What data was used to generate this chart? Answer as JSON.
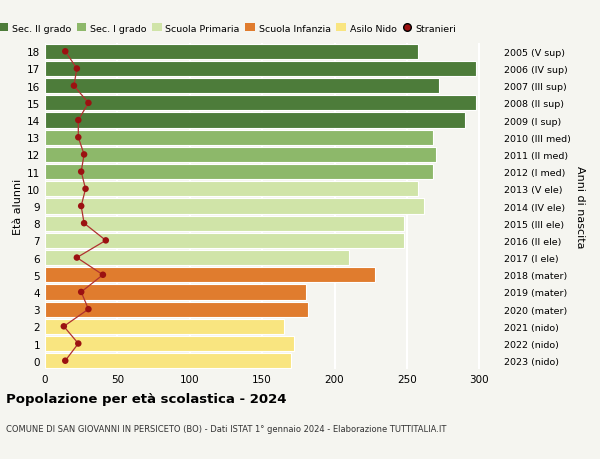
{
  "ages": [
    0,
    1,
    2,
    3,
    4,
    5,
    6,
    7,
    8,
    9,
    10,
    11,
    12,
    13,
    14,
    15,
    16,
    17,
    18
  ],
  "bar_values": [
    170,
    172,
    165,
    182,
    180,
    228,
    210,
    248,
    248,
    262,
    258,
    268,
    270,
    268,
    290,
    298,
    272,
    298,
    258
  ],
  "stranieri": [
    14,
    23,
    13,
    30,
    25,
    40,
    22,
    42,
    27,
    25,
    28,
    25,
    27,
    23,
    23,
    30,
    20,
    22,
    14
  ],
  "right_labels": [
    "2023 (nido)",
    "2022 (nido)",
    "2021 (nido)",
    "2020 (mater)",
    "2019 (mater)",
    "2018 (mater)",
    "2017 (I ele)",
    "2016 (II ele)",
    "2015 (III ele)",
    "2014 (IV ele)",
    "2013 (V ele)",
    "2012 (I med)",
    "2011 (II med)",
    "2010 (III med)",
    "2009 (I sup)",
    "2008 (II sup)",
    "2007 (III sup)",
    "2006 (IV sup)",
    "2005 (V sup)"
  ],
  "bar_colors": [
    "#f9e580",
    "#f9e580",
    "#f9e580",
    "#e07c2e",
    "#e07c2e",
    "#e07c2e",
    "#d0e4a8",
    "#d0e4a8",
    "#d0e4a8",
    "#d0e4a8",
    "#d0e4a8",
    "#8db86a",
    "#8db86a",
    "#8db86a",
    "#4d7c3a",
    "#4d7c3a",
    "#4d7c3a",
    "#4d7c3a",
    "#4d7c3a"
  ],
  "stranieri_color": "#9b1111",
  "stranieri_line_color": "#b03030",
  "background_color": "#f5f5f0",
  "grid_color": "#ffffff",
  "title": "Popolazione per età scolastica - 2024",
  "subtitle": "COMUNE DI SAN GIOVANNI IN PERSICETO (BO) - Dati ISTAT 1° gennaio 2024 - Elaborazione TUTTITALIA.IT",
  "ylabel": "Età alunni",
  "right_axis_label": "Anni di nascita",
  "legend_labels": [
    "Sec. II grado",
    "Sec. I grado",
    "Scuola Primaria",
    "Scuola Infanzia",
    "Asilo Nido",
    "Stranieri"
  ],
  "legend_colors": [
    "#4d7c3a",
    "#8db86a",
    "#d0e4a8",
    "#e07c2e",
    "#f9e580",
    "#9b1111"
  ],
  "xlim": [
    0,
    315
  ],
  "ylim": [
    -0.5,
    18.5
  ],
  "xticks": [
    0,
    50,
    100,
    150,
    200,
    250,
    300
  ]
}
